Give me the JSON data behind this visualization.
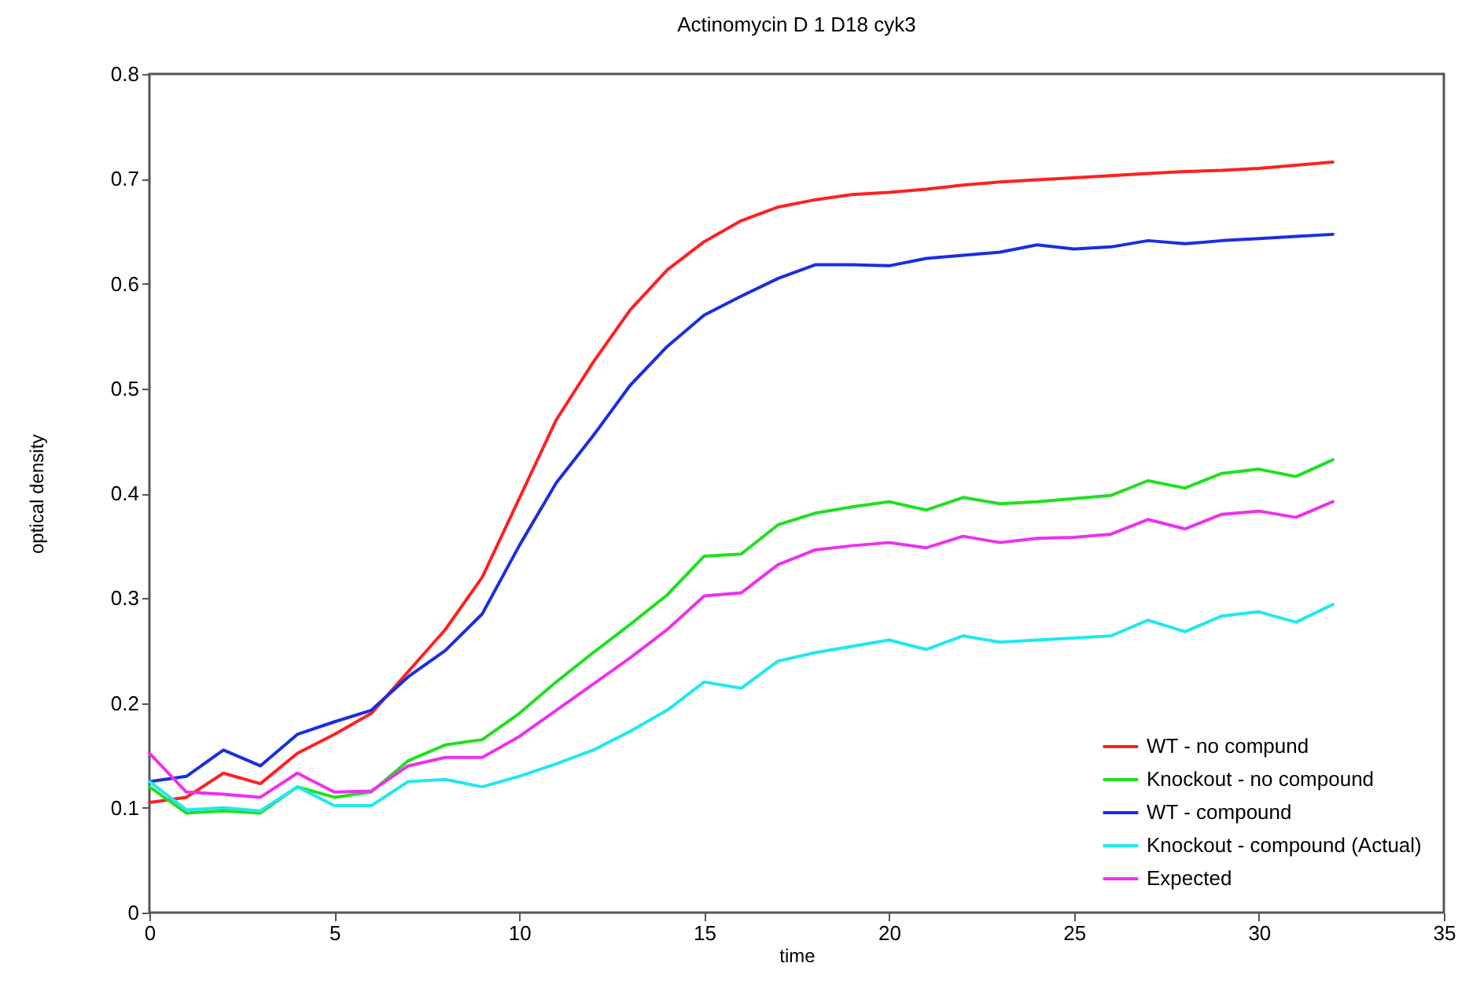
{
  "chart_data": {
    "type": "line",
    "title": "Actinomycin D 1 D18 cyk3",
    "xlabel": "time",
    "ylabel": "optical density",
    "x": [
      0,
      1,
      2,
      3,
      4,
      5,
      6,
      7,
      8,
      9,
      10,
      11,
      12,
      13,
      14,
      15,
      16,
      17,
      18,
      19,
      20,
      21,
      22,
      23,
      24,
      25,
      26,
      27,
      28,
      29,
      30,
      31,
      32
    ],
    "xlim": [
      0,
      35
    ],
    "xticks": [
      0,
      5,
      10,
      15,
      20,
      25,
      30,
      35
    ],
    "ylim": [
      0,
      0.8
    ],
    "yticks": [
      0,
      0.1,
      0.2,
      0.3,
      0.4,
      0.5,
      0.6,
      0.7,
      0.8
    ],
    "legend": "bottom right",
    "series": [
      {
        "name": "WT - no compund",
        "color": "#ff2020",
        "values": [
          0.105,
          0.11,
          0.133,
          0.123,
          0.152,
          0.17,
          0.19,
          0.23,
          0.27,
          0.32,
          0.395,
          0.47,
          0.525,
          0.575,
          0.613,
          0.64,
          0.66,
          0.673,
          0.68,
          0.685,
          0.687,
          0.69,
          0.694,
          0.697,
          0.699,
          0.701,
          0.703,
          0.705,
          0.707,
          0.708,
          0.71,
          0.713,
          0.716
        ]
      },
      {
        "name": "Knockout - no compound",
        "color": "#20e020",
        "values": [
          0.12,
          0.095,
          0.097,
          0.095,
          0.12,
          0.11,
          0.115,
          0.145,
          0.16,
          0.165,
          0.19,
          0.22,
          0.248,
          0.275,
          0.303,
          0.34,
          0.342,
          0.37,
          0.381,
          0.387,
          0.392,
          0.384,
          0.396,
          0.39,
          0.392,
          0.395,
          0.398,
          0.412,
          0.405,
          0.419,
          0.423,
          0.416,
          0.432
        ]
      },
      {
        "name": "WT - compound",
        "color": "#1a2ee0",
        "values": [
          0.125,
          0.13,
          0.155,
          0.14,
          0.17,
          0.182,
          0.193,
          0.225,
          0.25,
          0.285,
          0.35,
          0.41,
          0.455,
          0.503,
          0.54,
          0.57,
          0.588,
          0.605,
          0.618,
          0.618,
          0.617,
          0.624,
          0.627,
          0.63,
          0.637,
          0.633,
          0.635,
          0.641,
          0.638,
          0.641,
          0.643,
          0.645,
          0.647
        ]
      },
      {
        "name": "Knockout - compound (Actual)",
        "color": "#20e8f0",
        "values": [
          0.125,
          0.098,
          0.1,
          0.097,
          0.12,
          0.102,
          0.102,
          0.125,
          0.127,
          0.12,
          0.13,
          0.142,
          0.155,
          0.173,
          0.193,
          0.22,
          0.214,
          0.24,
          0.248,
          0.254,
          0.26,
          0.251,
          0.264,
          0.258,
          0.26,
          0.262,
          0.264,
          0.279,
          0.268,
          0.283,
          0.287,
          0.277,
          0.294
        ]
      },
      {
        "name": "Expected",
        "color": "#ee30ee",
        "values": [
          0.152,
          0.115,
          0.113,
          0.11,
          0.133,
          0.115,
          0.116,
          0.14,
          0.148,
          0.148,
          0.168,
          0.193,
          0.218,
          0.243,
          0.27,
          0.302,
          0.305,
          0.332,
          0.346,
          0.35,
          0.353,
          0.348,
          0.359,
          0.353,
          0.357,
          0.358,
          0.361,
          0.375,
          0.366,
          0.38,
          0.383,
          0.377,
          0.392
        ]
      }
    ]
  }
}
